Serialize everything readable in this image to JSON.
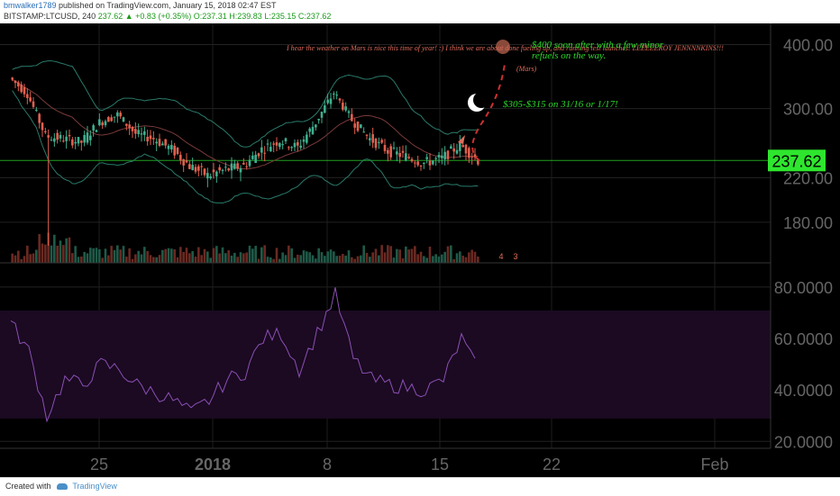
{
  "header": {
    "author": "bmwalker1789",
    "published_text": "published on TradingView.com, January 15, 2018 02:47 EST",
    "symbol": "BITSTAMP:LTCUSD, 240",
    "last": "237.62",
    "change": "▲ +0.83 (+0.35%)",
    "open": "O:237.31",
    "high": "H:239.83",
    "low": "L:235.15",
    "close": "C:237.62"
  },
  "footer": {
    "created_with": "Created with",
    "brand": "TradingView"
  },
  "annotations": {
    "mars_note": "I hear the weather on Mars is nice this time of year! :) I think we are about done fueling up, and running test launches! LEEEEEROY JENNNNKINS!!!",
    "target_400": "$400 soon after with a few minor refuels on the way.",
    "target_305": "$305-$315 on 31/16 or 1/17!",
    "mars_label": "(Mars)",
    "event_badge_1": "4",
    "event_badge_2": "3"
  },
  "colors": {
    "background": "#000000",
    "candle_up": "#3fae8d",
    "candle_down": "#e0604e",
    "bollinger": "#2a7a6a",
    "price_label_bg": "#2ee62e",
    "rsi_band": "#1b0a22",
    "rsi_line": "#8c4fb5",
    "annotation_red": "#e06c5a",
    "annotation_green": "#2ad92a"
  },
  "chart_data": [
    {
      "type": "candlestick",
      "title": "BITSTAMP:LTCUSD, 240",
      "y_scale": "log",
      "ylim": [
        150,
        440
      ],
      "y_ticks": [
        "400.00",
        "300.00",
        "220.00",
        "180.00"
      ],
      "x_ticks": [
        "25",
        "2018",
        "8",
        "15",
        "22",
        "Feb"
      ],
      "last_price": "237.62",
      "indicators": [
        "Bollinger Bands",
        "Volume"
      ],
      "series": [
        {
          "name": "LTCUSD close",
          "x": [
            "Dec 20",
            "Dec 21",
            "Dec 22",
            "Dec 23",
            "Dec 24",
            "Dec 25",
            "Dec 26",
            "Dec 27",
            "Dec 28",
            "Dec 29",
            "Dec 30",
            "Dec 31",
            "Jan 1",
            "Jan 2",
            "Jan 3",
            "Jan 4",
            "Jan 5",
            "Jan 6",
            "Jan 7",
            "Jan 8",
            "Jan 9",
            "Jan 10",
            "Jan 11",
            "Jan 12",
            "Jan 13",
            "Jan 14",
            "Jan 15"
          ],
          "values": [
            345,
            320,
            265,
            262,
            258,
            282,
            292,
            268,
            262,
            250,
            232,
            222,
            228,
            232,
            250,
            260,
            252,
            282,
            322,
            285,
            262,
            248,
            242,
            235,
            240,
            255,
            238
          ]
        }
      ],
      "projection": [
        {
          "date": "Jan 17",
          "price": "$305-$315"
        },
        {
          "date": "soon after",
          "price": "$400"
        }
      ]
    },
    {
      "type": "line",
      "title": "RSI",
      "ylim": [
        18,
        88
      ],
      "y_ticks": [
        "80.0000",
        "60.0000",
        "40.0000",
        "20.0000"
      ],
      "bands": [
        70,
        30
      ],
      "series": [
        {
          "name": "RSI",
          "x": [
            "Dec 20",
            "Dec 21",
            "Dec 22",
            "Dec 23",
            "Dec 24",
            "Dec 25",
            "Dec 26",
            "Dec 27",
            "Dec 28",
            "Dec 29",
            "Dec 30",
            "Dec 31",
            "Jan 1",
            "Jan 2",
            "Jan 3",
            "Jan 4",
            "Jan 5",
            "Jan 6",
            "Jan 7",
            "Jan 8",
            "Jan 9",
            "Jan 10",
            "Jan 11",
            "Jan 12",
            "Jan 13",
            "Jan 14",
            "Jan 15"
          ],
          "values": [
            66,
            55,
            30,
            44,
            42,
            50,
            48,
            42,
            39,
            36,
            31,
            36,
            44,
            47,
            60,
            62,
            48,
            62,
            77,
            52,
            44,
            42,
            41,
            40,
            44,
            60,
            46
          ]
        }
      ]
    }
  ]
}
